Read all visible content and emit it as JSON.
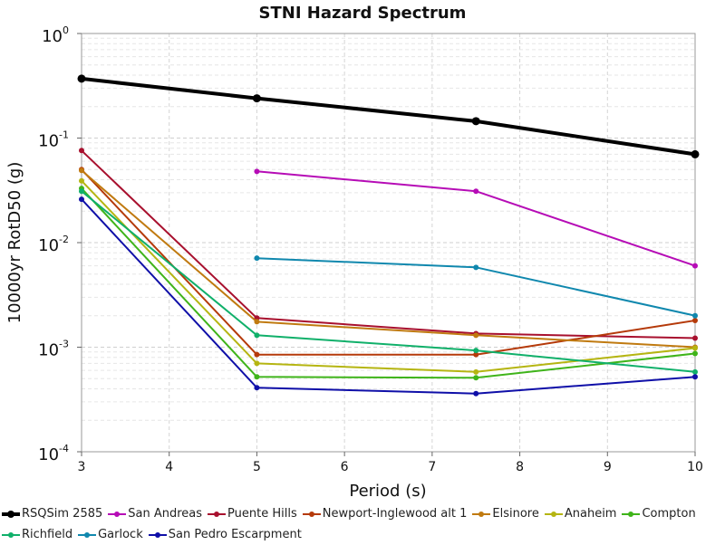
{
  "chart_data": {
    "type": "line",
    "title": "STNI Hazard Spectrum",
    "xlabel": "Period (s)",
    "ylabel": "10000yr RotD50 (g)",
    "xlim": [
      3,
      10
    ],
    "ylim": [
      0.0001,
      1
    ],
    "yscale": "log",
    "x_ticks": [
      "3",
      "4",
      "5",
      "6",
      "7",
      "8",
      "9",
      "10"
    ],
    "y_ticks": [
      {
        "base": "10",
        "exp": "-4"
      },
      {
        "base": "10",
        "exp": "-3"
      },
      {
        "base": "10",
        "exp": "-2"
      },
      {
        "base": "10",
        "exp": "-1"
      },
      {
        "base": "10",
        "exp": "0"
      }
    ],
    "grid": true,
    "legend_position": "bottom",
    "series": [
      {
        "name": "RSQSim 2585",
        "color": "#000000",
        "emphasis": true,
        "x": [
          3,
          5,
          7.5,
          10
        ],
        "y": [
          0.37,
          0.24,
          0.145,
          0.07
        ]
      },
      {
        "name": "San Andreas",
        "color": "#b60cb6",
        "x": [
          5,
          7.5,
          10
        ],
        "y": [
          0.048,
          0.031,
          0.006
        ]
      },
      {
        "name": "Puente Hills",
        "color": "#a8102e",
        "x": [
          3,
          5,
          7.5,
          10
        ],
        "y": [
          0.076,
          0.0019,
          0.00135,
          0.00122
        ]
      },
      {
        "name": "Newport-Inglewood alt 1",
        "color": "#b53a0a",
        "x": [
          3,
          5,
          7.5,
          10
        ],
        "y": [
          0.05,
          0.00085,
          0.00085,
          0.0018
        ]
      },
      {
        "name": "Elsinore",
        "color": "#c07a10",
        "x": [
          3,
          5,
          7.5,
          10
        ],
        "y": [
          0.049,
          0.00175,
          0.0013,
          0.001
        ]
      },
      {
        "name": "Anaheim",
        "color": "#b5b512",
        "x": [
          3,
          5,
          7.5,
          10
        ],
        "y": [
          0.039,
          0.0007,
          0.00058,
          0.00098
        ]
      },
      {
        "name": "Compton",
        "color": "#3fb41a",
        "x": [
          3,
          5,
          7.5,
          10
        ],
        "y": [
          0.033,
          0.00052,
          0.00051,
          0.00087
        ]
      },
      {
        "name": "Richfield",
        "color": "#10b06a",
        "x": [
          3,
          5,
          7.5,
          10
        ],
        "y": [
          0.031,
          0.0013,
          0.00093,
          0.00058
        ]
      },
      {
        "name": "Garlock",
        "color": "#1088ae",
        "x": [
          5,
          7.5,
          10
        ],
        "y": [
          0.0071,
          0.0058,
          0.002
        ]
      },
      {
        "name": "San Pedro Escarpment",
        "color": "#0f0fa8",
        "x": [
          3,
          5,
          7.5,
          10
        ],
        "y": [
          0.026,
          0.00041,
          0.00036,
          0.00052
        ]
      }
    ]
  },
  "legend_rows": [
    [
      0,
      1,
      2,
      3,
      4,
      5,
      6
    ],
    [
      7,
      8,
      9
    ]
  ]
}
